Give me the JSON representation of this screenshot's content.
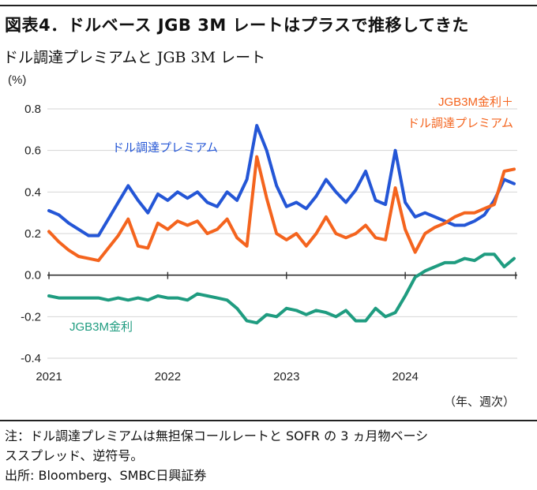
{
  "header": {
    "title": "図表4．ドルベース JGB 3M レートはプラスで推移してきた",
    "subtitle": "ドル調達プレミアムと JGB 3M レート"
  },
  "footer": {
    "note_line1": "注：ドル調達プレミアムは無担保コールレートと SOFR の 3 ヵ月物ベーシ",
    "note_line2": "ススプレッド、逆符号。",
    "source": "出所: Bloomberg、SMBC日興証券"
  },
  "colors": {
    "premium": "#2456d6",
    "sum": "#f4641e",
    "jgb": "#1f9c80",
    "axis": "#333333",
    "grid": "#d4d4d4"
  },
  "chart_data": {
    "type": "line",
    "y_unit_label": "(%)",
    "x_unit_label": "（年、週次）",
    "ylim": [
      -0.4,
      0.8
    ],
    "yticks": [
      "0.8",
      "0.6",
      "0.4",
      "0.2",
      "0.0",
      "-0.2",
      "-0.4"
    ],
    "xticks": [
      "2021",
      "2022",
      "2023",
      "2024"
    ],
    "grid": "horizontal",
    "x": [
      "2021-01",
      "2021-02",
      "2021-03",
      "2021-04",
      "2021-05",
      "2021-06",
      "2021-07",
      "2021-08",
      "2021-09",
      "2021-10",
      "2021-11",
      "2021-12",
      "2022-01",
      "2022-02",
      "2022-03",
      "2022-04",
      "2022-05",
      "2022-06",
      "2022-07",
      "2022-08",
      "2022-09",
      "2022-10",
      "2022-11",
      "2022-12",
      "2023-01",
      "2023-02",
      "2023-03",
      "2023-04",
      "2023-05",
      "2023-06",
      "2023-07",
      "2023-08",
      "2023-09",
      "2023-10",
      "2023-11",
      "2023-12",
      "2024-01",
      "2024-02",
      "2024-03",
      "2024-04",
      "2024-05",
      "2024-06",
      "2024-07",
      "2024-08",
      "2024-09",
      "2024-10",
      "2024-11",
      "2024-12"
    ],
    "series": [
      {
        "name": "ドル調達プレミアム",
        "color_key": "premium",
        "label_text": "ドル調達プレミアム",
        "values": [
          0.31,
          0.29,
          0.25,
          0.22,
          0.19,
          0.19,
          0.27,
          0.35,
          0.43,
          0.36,
          0.3,
          0.39,
          0.36,
          0.4,
          0.37,
          0.4,
          0.35,
          0.33,
          0.4,
          0.36,
          0.46,
          0.72,
          0.6,
          0.43,
          0.33,
          0.35,
          0.32,
          0.38,
          0.46,
          0.4,
          0.35,
          0.41,
          0.5,
          0.36,
          0.34,
          0.6,
          0.35,
          0.28,
          0.3,
          0.28,
          0.26,
          0.24,
          0.24,
          0.26,
          0.29,
          0.36,
          0.46,
          0.44
        ]
      },
      {
        "name": "JGB3M金利＋ドル調達プレミアム",
        "color_key": "sum",
        "label_lines": [
          "JGB3M金利＋",
          "ドル調達プレミアム"
        ],
        "values": [
          0.21,
          0.16,
          0.12,
          0.09,
          0.08,
          0.07,
          0.13,
          0.19,
          0.27,
          0.14,
          0.13,
          0.25,
          0.22,
          0.26,
          0.24,
          0.26,
          0.2,
          0.22,
          0.27,
          0.18,
          0.14,
          0.57,
          0.37,
          0.2,
          0.17,
          0.2,
          0.14,
          0.2,
          0.28,
          0.2,
          0.18,
          0.2,
          0.24,
          0.18,
          0.17,
          0.42,
          0.22,
          0.11,
          0.2,
          0.23,
          0.25,
          0.28,
          0.3,
          0.3,
          0.32,
          0.34,
          0.5,
          0.51
        ]
      },
      {
        "name": "JGB3M金利",
        "color_key": "jgb",
        "label_text": "JGB3M金利",
        "values": [
          -0.1,
          -0.11,
          -0.11,
          -0.11,
          -0.11,
          -0.11,
          -0.12,
          -0.11,
          -0.12,
          -0.11,
          -0.12,
          -0.1,
          -0.11,
          -0.11,
          -0.12,
          -0.09,
          -0.1,
          -0.11,
          -0.12,
          -0.16,
          -0.22,
          -0.23,
          -0.19,
          -0.2,
          -0.16,
          -0.17,
          -0.19,
          -0.17,
          -0.18,
          -0.2,
          -0.17,
          -0.22,
          -0.22,
          -0.16,
          -0.2,
          -0.18,
          -0.1,
          -0.01,
          0.02,
          0.04,
          0.06,
          0.06,
          0.08,
          0.07,
          0.1,
          0.1,
          0.04,
          0.08
        ]
      }
    ]
  }
}
